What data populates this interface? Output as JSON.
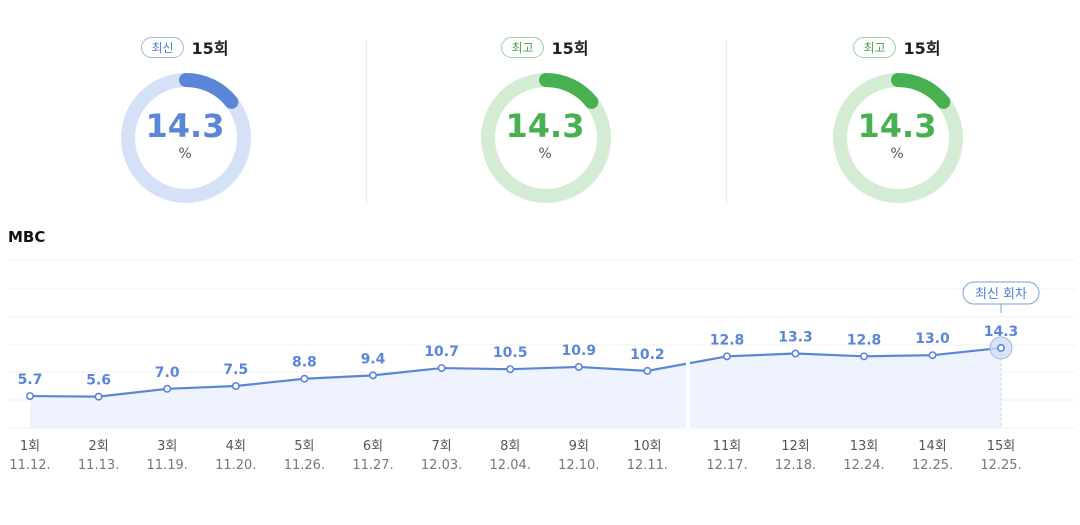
{
  "cards": [
    {
      "badge": "최신",
      "episode": "15회",
      "value": "14.3",
      "unit": "%",
      "color": "#5b86d8",
      "track": "#d5e1f7",
      "fraction": 0.143
    },
    {
      "badge": "최고",
      "episode": "15회",
      "value": "14.3",
      "unit": "%",
      "color": "#48b04e",
      "track": "#d3ecd3",
      "fraction": 0.143
    },
    {
      "badge": "최고",
      "episode": "15회",
      "value": "14.3",
      "unit": "%",
      "color": "#48b04e",
      "track": "#d3ecd3",
      "fraction": 0.143
    }
  ],
  "channel": "MBC",
  "chart_data": {
    "type": "area",
    "categories": [
      "1회",
      "2회",
      "3회",
      "4회",
      "5회",
      "6회",
      "7회",
      "8회",
      "9회",
      "10회",
      "11회",
      "12회",
      "13회",
      "14회",
      "15회"
    ],
    "dates": [
      "11.12.",
      "11.13.",
      "11.19.",
      "11.20.",
      "11.26.",
      "11.27.",
      "12.03.",
      "12.04.",
      "12.10.",
      "12.11.",
      "12.17.",
      "12.18.",
      "12.24.",
      "12.25.",
      "12.25."
    ],
    "series": [
      {
        "values": [
          5.7,
          5.6,
          7.0,
          7.5,
          8.8,
          9.4,
          10.7,
          10.5,
          10.9,
          10.2,
          12.8,
          13.3,
          12.8,
          13.0,
          14.3
        ]
      }
    ],
    "value_labels": [
      "5.7",
      "5.6",
      "7.0",
      "7.5",
      "8.8",
      "9.4",
      "10.7",
      "10.5",
      "10.9",
      "10.2",
      "12.8",
      "13.3",
      "12.8",
      "13.0",
      "14.3"
    ],
    "annotation": {
      "text": "최신 회차",
      "index": 14
    },
    "ylim": [
      0,
      30
    ],
    "grid": true,
    "line_color": "#5b86d8",
    "fill_color": "#eef3fd"
  }
}
